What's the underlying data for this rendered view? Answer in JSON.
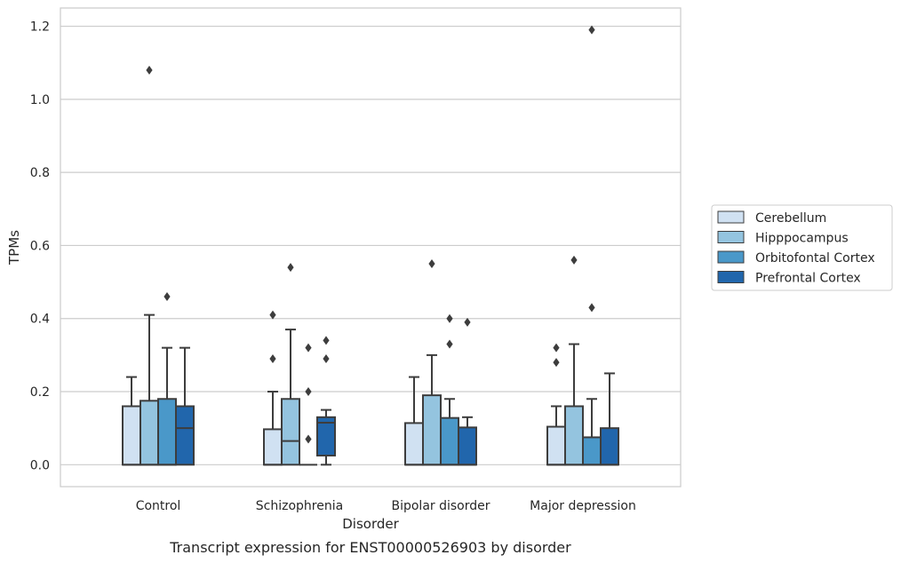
{
  "chart_data": {
    "type": "boxplot",
    "xlabel": "Disorder",
    "ylabel": "TPMs",
    "caption": "Transcript expression for ENST00000526903 by disorder",
    "ylim": [
      -0.06,
      1.25
    ],
    "yticks": [
      "0.0",
      "0.2",
      "0.4",
      "0.6",
      "0.8",
      "1.0",
      "1.2"
    ],
    "grid": "horizontal",
    "legend_position": "right",
    "categories": [
      "Control",
      "Schizophrenia",
      "Bipolar disorder",
      "Major depression"
    ],
    "series": [
      {
        "name": "Cerebellum",
        "color": "#d0e1f2",
        "boxes": [
          {
            "min": 0.0,
            "q1": 0.0,
            "median": 0.0,
            "q3": 0.16,
            "max": 0.24,
            "outliers": []
          },
          {
            "min": 0.0,
            "q1": 0.0,
            "median": 0.0,
            "q3": 0.097,
            "max": 0.2,
            "outliers": [
              0.29,
              0.41
            ]
          },
          {
            "min": 0.0,
            "q1": 0.0,
            "median": 0.0,
            "q3": 0.114,
            "max": 0.24,
            "outliers": []
          },
          {
            "min": 0.0,
            "q1": 0.0,
            "median": 0.0,
            "q3": 0.104,
            "max": 0.16,
            "outliers": [
              0.28,
              0.32
            ]
          }
        ]
      },
      {
        "name": "Hipppocampus",
        "color": "#94c4df",
        "boxes": [
          {
            "min": 0.0,
            "q1": 0.0,
            "median": 0.0,
            "q3": 0.175,
            "max": 0.41,
            "outliers": [
              1.08
            ]
          },
          {
            "min": 0.0,
            "q1": 0.0,
            "median": 0.065,
            "q3": 0.18,
            "max": 0.37,
            "outliers": [
              0.54
            ]
          },
          {
            "min": 0.0,
            "q1": 0.0,
            "median": 0.0,
            "q3": 0.19,
            "max": 0.3,
            "outliers": [
              0.55
            ]
          },
          {
            "min": 0.0,
            "q1": 0.0,
            "median": 0.0,
            "q3": 0.16,
            "max": 0.33,
            "outliers": [
              0.56
            ]
          }
        ]
      },
      {
        "name": "Orbitofontal Cortex",
        "color": "#4a98c9",
        "boxes": [
          {
            "min": 0.0,
            "q1": 0.0,
            "median": 0.0,
            "q3": 0.18,
            "max": 0.32,
            "outliers": [
              0.46
            ]
          },
          {
            "min": 0.0,
            "q1": 0.0,
            "median": 0.0,
            "q3": 0.0,
            "max": 0.0,
            "outliers": [
              0.07,
              0.2,
              0.32
            ]
          },
          {
            "min": 0.0,
            "q1": 0.0,
            "median": 0.0,
            "q3": 0.128,
            "max": 0.18,
            "outliers": [
              0.33,
              0.4
            ]
          },
          {
            "min": 0.0,
            "q1": 0.0,
            "median": 0.0,
            "q3": 0.075,
            "max": 0.18,
            "outliers": [
              0.43,
              1.19
            ]
          }
        ]
      },
      {
        "name": "Prefrontal Cortex",
        "color": "#2166ac",
        "boxes": [
          {
            "min": 0.0,
            "q1": 0.0,
            "median": 0.1,
            "q3": 0.16,
            "max": 0.32,
            "outliers": []
          },
          {
            "min": 0.0,
            "q1": 0.025,
            "median": 0.115,
            "q3": 0.13,
            "max": 0.15,
            "outliers": [
              0.29,
              0.34
            ]
          },
          {
            "min": 0.0,
            "q1": 0.0,
            "median": 0.0,
            "q3": 0.102,
            "max": 0.13,
            "outliers": [
              0.39
            ]
          },
          {
            "min": 0.0,
            "q1": 0.0,
            "median": 0.0,
            "q3": 0.1,
            "max": 0.25,
            "outliers": []
          }
        ]
      }
    ]
  }
}
